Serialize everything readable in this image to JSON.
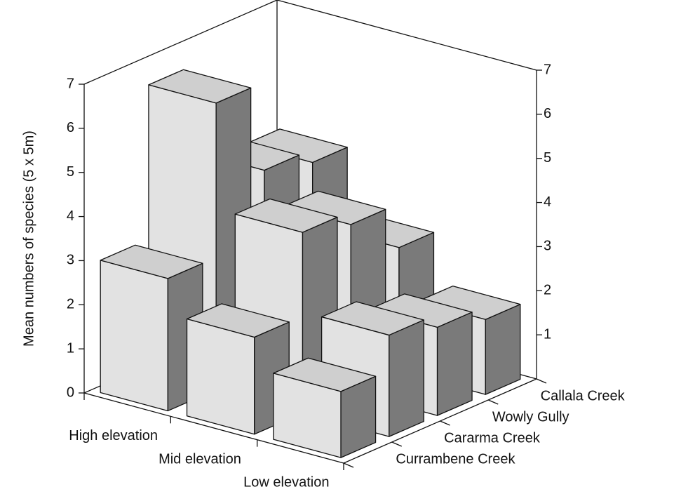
{
  "chart_data": {
    "type": "bar3d",
    "ylabel": "Mean numbers of species (5 x 5m)",
    "categories": [
      "High elevation",
      "Mid elevation",
      "Low elevation"
    ],
    "series": [
      {
        "name": "Currambene Creek",
        "values": [
          3.0,
          2.2,
          1.5
        ]
      },
      {
        "name": "Cararma Creek",
        "values": [
          6.5,
          4.1,
          2.3
        ]
      },
      {
        "name": "Wowly Gully",
        "values": [
          4.5,
          3.8,
          2.0
        ]
      },
      {
        "name": "Callala Creek",
        "values": [
          4.2,
          2.8,
          1.7
        ]
      }
    ],
    "ylim": [
      0,
      7
    ],
    "yticks": [
      0,
      1,
      2,
      3,
      4,
      5,
      6,
      7
    ],
    "y2ticks": [
      1,
      2,
      3,
      4,
      5,
      6,
      7
    ],
    "face_colors": {
      "front": "#e2e2e2",
      "side": "#7a7a7a",
      "top": "#cfcfcf"
    }
  }
}
